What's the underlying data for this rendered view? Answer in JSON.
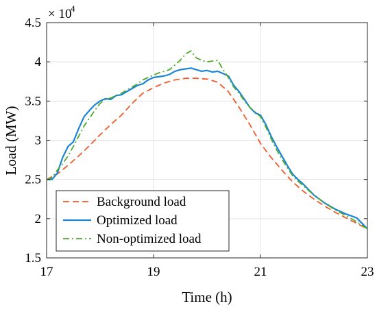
{
  "chart_data": {
    "type": "line",
    "xlabel": "Time (h)",
    "ylabel": "Load (MW)",
    "xlim": [
      17,
      23
    ],
    "ylim": [
      1.5,
      4.5
    ],
    "y_multiplier_base": "× 10",
    "y_multiplier_exp": "4",
    "x_ticks": [
      17,
      19,
      21,
      23
    ],
    "x_tick_labels": [
      "17",
      "19",
      "21",
      "23"
    ],
    "y_ticks": [
      1.5,
      2,
      2.5,
      3,
      3.5,
      4,
      4.5
    ],
    "y_tick_labels": [
      "1.5",
      "2",
      "2.5",
      "3",
      "3.5",
      "4",
      "4.5"
    ],
    "grid": true,
    "legend_position": "bottom-left",
    "series": [
      {
        "name": "Background load",
        "color": "#f05a28",
        "dash": "dashed",
        "x": [
          17.0,
          17.2,
          17.4,
          17.6,
          17.8,
          18.0,
          18.2,
          18.4,
          18.6,
          18.8,
          19.0,
          19.2,
          19.4,
          19.6,
          19.8,
          20.0,
          20.2,
          20.4,
          20.6,
          20.8,
          21.0,
          21.2,
          21.4,
          21.6,
          21.8,
          22.0,
          22.2,
          22.4,
          22.6,
          22.8,
          23.0
        ],
        "y": [
          2.5,
          2.57,
          2.68,
          2.8,
          2.93,
          3.07,
          3.2,
          3.32,
          3.47,
          3.6,
          3.67,
          3.73,
          3.77,
          3.79,
          3.79,
          3.78,
          3.74,
          3.62,
          3.42,
          3.2,
          2.96,
          2.78,
          2.62,
          2.47,
          2.35,
          2.25,
          2.16,
          2.08,
          2.01,
          1.94,
          1.87
        ]
      },
      {
        "name": "Optimized load",
        "color": "#1a84d6",
        "dash": "solid",
        "x": [
          17.0,
          17.1,
          17.2,
          17.3,
          17.4,
          17.5,
          17.6,
          17.7,
          17.8,
          17.9,
          18.0,
          18.1,
          18.2,
          18.3,
          18.4,
          18.5,
          18.6,
          18.7,
          18.8,
          18.9,
          19.0,
          19.1,
          19.2,
          19.3,
          19.4,
          19.5,
          19.6,
          19.7,
          19.8,
          19.9,
          20.0,
          20.1,
          20.2,
          20.3,
          20.4,
          20.5,
          20.6,
          20.7,
          20.8,
          20.9,
          21.0,
          21.1,
          21.2,
          21.3,
          21.4,
          21.5,
          21.6,
          21.7,
          21.8,
          21.9,
          22.0,
          22.2,
          22.4,
          22.6,
          22.8,
          23.0
        ],
        "y": [
          2.5,
          2.5,
          2.58,
          2.78,
          2.92,
          2.98,
          3.15,
          3.3,
          3.38,
          3.45,
          3.5,
          3.53,
          3.52,
          3.57,
          3.58,
          3.62,
          3.66,
          3.7,
          3.72,
          3.77,
          3.8,
          3.81,
          3.82,
          3.84,
          3.88,
          3.9,
          3.91,
          3.92,
          3.9,
          3.88,
          3.89,
          3.87,
          3.88,
          3.85,
          3.82,
          3.7,
          3.62,
          3.52,
          3.42,
          3.35,
          3.32,
          3.2,
          3.05,
          2.92,
          2.8,
          2.68,
          2.57,
          2.5,
          2.44,
          2.37,
          2.3,
          2.2,
          2.12,
          2.06,
          2.01,
          1.87
        ]
      },
      {
        "name": "Non-optimized load",
        "color": "#4daa2a",
        "dash": "dashdot",
        "x": [
          17.0,
          17.1,
          17.2,
          17.3,
          17.4,
          17.5,
          17.6,
          17.7,
          17.8,
          17.9,
          18.0,
          18.1,
          18.2,
          18.3,
          18.4,
          18.5,
          18.6,
          18.7,
          18.8,
          18.9,
          19.0,
          19.1,
          19.2,
          19.3,
          19.4,
          19.5,
          19.6,
          19.7,
          19.8,
          19.9,
          20.0,
          20.1,
          20.2,
          20.3,
          20.4,
          20.5,
          20.6,
          20.7,
          20.8,
          20.9,
          21.0,
          21.1,
          21.2,
          21.3,
          21.4,
          21.5,
          21.6,
          21.7,
          21.8,
          21.9,
          22.0,
          22.2,
          22.4,
          22.6,
          22.8,
          23.0
        ],
        "y": [
          2.5,
          2.52,
          2.62,
          2.7,
          2.8,
          2.92,
          3.05,
          3.18,
          3.28,
          3.38,
          3.47,
          3.52,
          3.54,
          3.57,
          3.6,
          3.64,
          3.68,
          3.72,
          3.77,
          3.8,
          3.83,
          3.86,
          3.88,
          3.9,
          3.96,
          4.02,
          4.1,
          4.14,
          4.05,
          4.02,
          4.0,
          4.01,
          4.02,
          3.9,
          3.8,
          3.68,
          3.6,
          3.5,
          3.42,
          3.36,
          3.3,
          3.17,
          3.02,
          2.88,
          2.76,
          2.65,
          2.55,
          2.48,
          2.42,
          2.36,
          2.3,
          2.2,
          2.11,
          2.04,
          1.96,
          1.87
        ]
      }
    ]
  }
}
